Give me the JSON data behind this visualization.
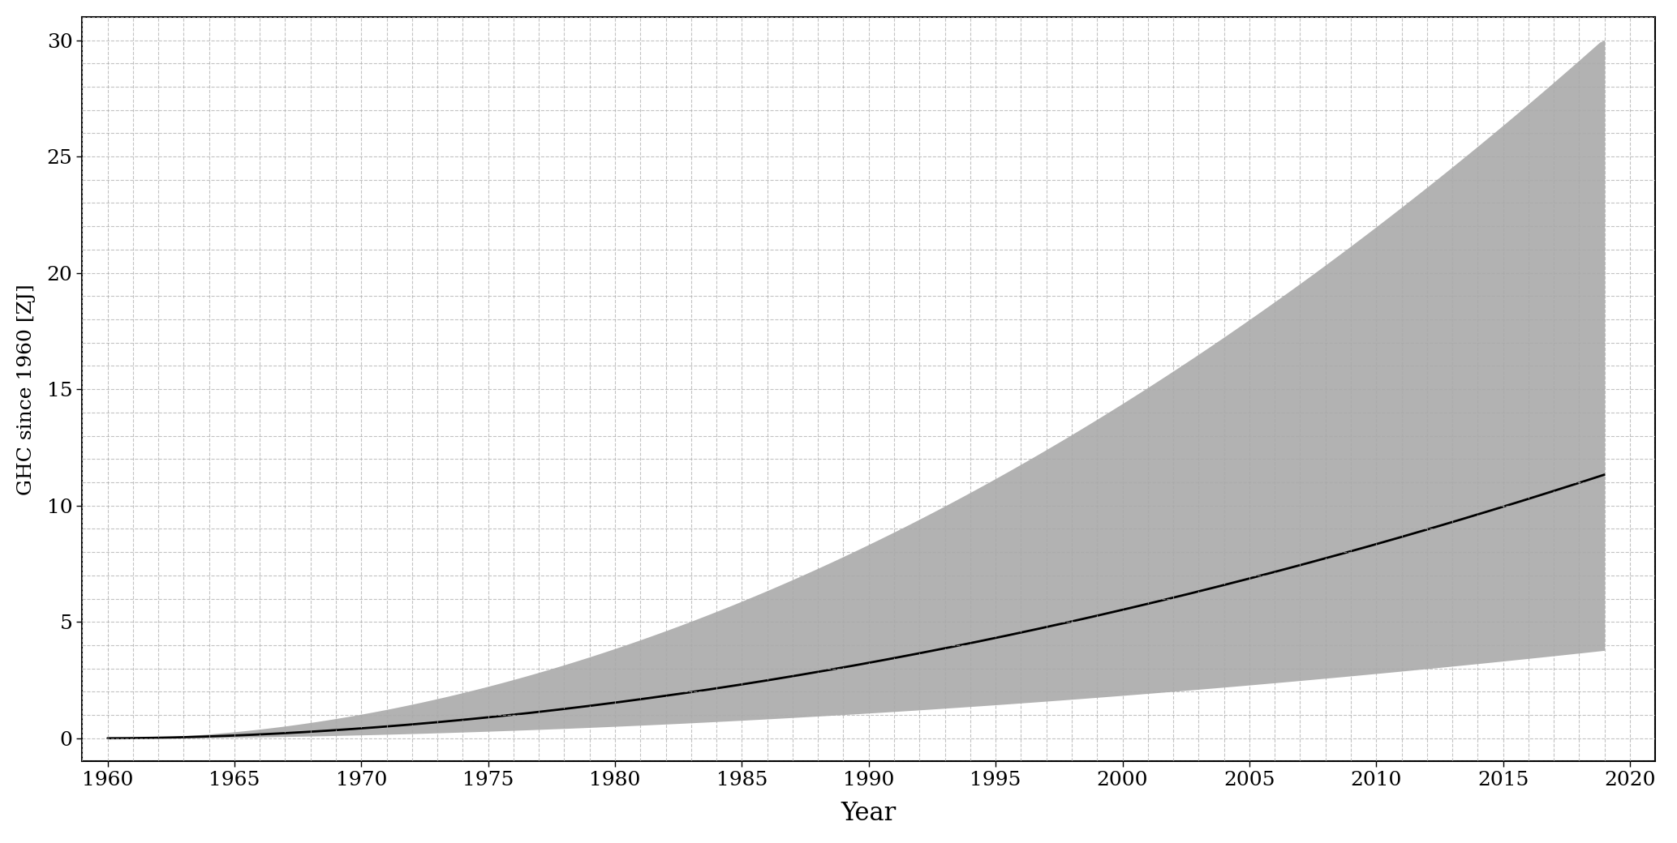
{
  "title": "",
  "xlabel": "Year",
  "ylabel": "GHC since 1960 [ZJ]",
  "xlim": [
    1959,
    2021
  ],
  "ylim": [
    -1,
    31
  ],
  "yticks": [
    0,
    5,
    10,
    15,
    20,
    25,
    30
  ],
  "xticks": [
    1960,
    1965,
    1970,
    1975,
    1980,
    1985,
    1990,
    1995,
    2000,
    2005,
    2010,
    2015,
    2020
  ],
  "year_start": 1960,
  "year_end": 2019,
  "background_color": "#ffffff",
  "fill_color": "#808080",
  "fill_alpha": 0.6,
  "line_color": "#000000",
  "line_width": 2.0,
  "grid_color": "#aaaaaa",
  "grid_style": "--",
  "grid_alpha": 0.7,
  "font_family": "serif"
}
